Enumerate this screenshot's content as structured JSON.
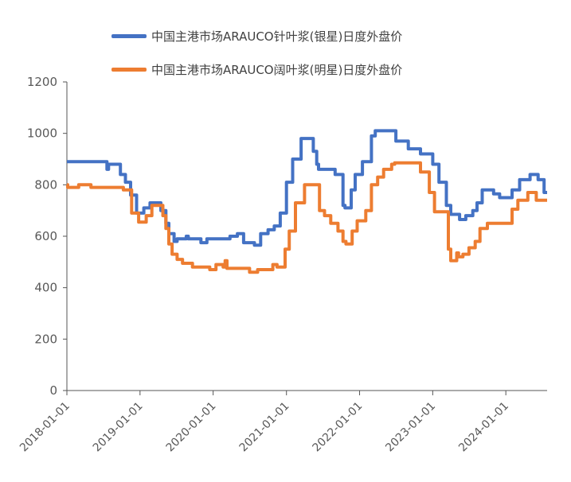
{
  "chart_data": {
    "type": "line",
    "title": "",
    "xlabel": "",
    "ylabel": "",
    "ylim": [
      0,
      1200
    ],
    "yticks": [
      "0",
      "200",
      "400",
      "600",
      "800",
      "1000",
      "1200"
    ],
    "xticks": [
      "2018-01-01",
      "2019-01-01",
      "2020-01-01",
      "2021-01-01",
      "2022-01-01",
      "2023-01-01",
      "2024-01-01"
    ],
    "grid": false,
    "legend_position": "top",
    "series": [
      {
        "name": "中国主港市场ARAUCO针叶浆(银星)日度外盘价",
        "color": "#4472C4",
        "points": [
          [
            "2018-01-01",
            890
          ],
          [
            "2018-07-20",
            890
          ],
          [
            "2018-07-20",
            860
          ],
          [
            "2018-07-28",
            860
          ],
          [
            "2018-07-28",
            880
          ],
          [
            "2018-09-25",
            880
          ],
          [
            "2018-09-25",
            840
          ],
          [
            "2018-10-20",
            840
          ],
          [
            "2018-10-20",
            810
          ],
          [
            "2018-11-15",
            810
          ],
          [
            "2018-11-15",
            760
          ],
          [
            "2018-12-15",
            760
          ],
          [
            "2018-12-15",
            690
          ],
          [
            "2019-01-20",
            690
          ],
          [
            "2019-01-20",
            710
          ],
          [
            "2019-02-20",
            710
          ],
          [
            "2019-02-20",
            730
          ],
          [
            "2019-04-15",
            730
          ],
          [
            "2019-04-15",
            700
          ],
          [
            "2019-05-10",
            700
          ],
          [
            "2019-05-10",
            650
          ],
          [
            "2019-05-25",
            650
          ],
          [
            "2019-05-25",
            610
          ],
          [
            "2019-06-20",
            610
          ],
          [
            "2019-06-20",
            580
          ],
          [
            "2019-07-05",
            580
          ],
          [
            "2019-07-05",
            590
          ],
          [
            "2019-08-20",
            590
          ],
          [
            "2019-08-20",
            600
          ],
          [
            "2019-08-30",
            600
          ],
          [
            "2019-08-30",
            590
          ],
          [
            "2019-11-01",
            590
          ],
          [
            "2019-11-01",
            575
          ],
          [
            "2019-12-01",
            575
          ],
          [
            "2019-12-01",
            590
          ],
          [
            "2020-03-25",
            590
          ],
          [
            "2020-03-25",
            600
          ],
          [
            "2020-05-01",
            600
          ],
          [
            "2020-05-01",
            610
          ],
          [
            "2020-06-01",
            610
          ],
          [
            "2020-06-01",
            575
          ],
          [
            "2020-07-25",
            575
          ],
          [
            "2020-07-25",
            565
          ],
          [
            "2020-08-25",
            565
          ],
          [
            "2020-08-25",
            610
          ],
          [
            "2020-10-01",
            610
          ],
          [
            "2020-10-01",
            625
          ],
          [
            "2020-11-01",
            625
          ],
          [
            "2020-11-01",
            640
          ],
          [
            "2020-12-01",
            640
          ],
          [
            "2020-12-01",
            690
          ],
          [
            "2021-01-01",
            690
          ],
          [
            "2021-01-01",
            810
          ],
          [
            "2021-02-01",
            810
          ],
          [
            "2021-02-01",
            900
          ],
          [
            "2021-03-15",
            900
          ],
          [
            "2021-03-15",
            980
          ],
          [
            "2021-05-15",
            980
          ],
          [
            "2021-05-15",
            930
          ],
          [
            "2021-06-01",
            930
          ],
          [
            "2021-06-01",
            880
          ],
          [
            "2021-06-10",
            880
          ],
          [
            "2021-06-10",
            860
          ],
          [
            "2021-09-01",
            860
          ],
          [
            "2021-09-01",
            840
          ],
          [
            "2021-10-10",
            840
          ],
          [
            "2021-10-10",
            720
          ],
          [
            "2021-10-20",
            720
          ],
          [
            "2021-10-20",
            710
          ],
          [
            "2021-11-20",
            710
          ],
          [
            "2021-11-20",
            780
          ],
          [
            "2021-12-10",
            780
          ],
          [
            "2021-12-10",
            840
          ],
          [
            "2022-01-15",
            840
          ],
          [
            "2022-01-15",
            890
          ],
          [
            "2022-03-01",
            890
          ],
          [
            "2022-03-01",
            990
          ],
          [
            "2022-03-20",
            990
          ],
          [
            "2022-03-20",
            1010
          ],
          [
            "2022-07-01",
            1010
          ],
          [
            "2022-07-01",
            970
          ],
          [
            "2022-09-01",
            970
          ],
          [
            "2022-09-01",
            940
          ],
          [
            "2022-11-01",
            940
          ],
          [
            "2022-11-01",
            920
          ],
          [
            "2023-01-01",
            920
          ],
          [
            "2023-01-01",
            880
          ],
          [
            "2023-02-01",
            880
          ],
          [
            "2023-02-01",
            810
          ],
          [
            "2023-03-10",
            810
          ],
          [
            "2023-03-10",
            720
          ],
          [
            "2023-04-01",
            720
          ],
          [
            "2023-04-01",
            685
          ],
          [
            "2023-05-15",
            685
          ],
          [
            "2023-05-15",
            665
          ],
          [
            "2023-06-15",
            665
          ],
          [
            "2023-06-15",
            680
          ],
          [
            "2023-07-20",
            680
          ],
          [
            "2023-07-20",
            700
          ],
          [
            "2023-08-10",
            700
          ],
          [
            "2023-08-10",
            730
          ],
          [
            "2023-09-05",
            730
          ],
          [
            "2023-09-05",
            780
          ],
          [
            "2023-11-01",
            780
          ],
          [
            "2023-11-01",
            765
          ],
          [
            "2023-12-01",
            765
          ],
          [
            "2023-12-01",
            750
          ],
          [
            "2024-02-01",
            750
          ],
          [
            "2024-02-01",
            780
          ],
          [
            "2024-03-10",
            780
          ],
          [
            "2024-03-10",
            820
          ],
          [
            "2024-05-01",
            820
          ],
          [
            "2024-05-01",
            840
          ],
          [
            "2024-06-10",
            840
          ],
          [
            "2024-06-10",
            820
          ],
          [
            "2024-07-10",
            820
          ],
          [
            "2024-07-10",
            770
          ],
          [
            "2024-07-25",
            770
          ]
        ]
      },
      {
        "name": "中国主港市场ARAUCO阔叶浆(明星)日度外盘价",
        "color": "#ED7D31",
        "points": [
          [
            "2018-01-01",
            800
          ],
          [
            "2018-01-05",
            800
          ],
          [
            "2018-01-05",
            790
          ],
          [
            "2018-03-01",
            790
          ],
          [
            "2018-03-01",
            800
          ],
          [
            "2018-05-01",
            800
          ],
          [
            "2018-05-01",
            790
          ],
          [
            "2018-10-10",
            790
          ],
          [
            "2018-10-10",
            780
          ],
          [
            "2018-11-20",
            780
          ],
          [
            "2018-11-20",
            690
          ],
          [
            "2018-12-25",
            690
          ],
          [
            "2018-12-25",
            655
          ],
          [
            "2019-02-01",
            655
          ],
          [
            "2019-02-01",
            680
          ],
          [
            "2019-03-01",
            680
          ],
          [
            "2019-03-01",
            720
          ],
          [
            "2019-04-25",
            720
          ],
          [
            "2019-04-25",
            680
          ],
          [
            "2019-05-10",
            680
          ],
          [
            "2019-05-10",
            630
          ],
          [
            "2019-05-25",
            630
          ],
          [
            "2019-05-25",
            570
          ],
          [
            "2019-06-10",
            570
          ],
          [
            "2019-06-10",
            530
          ],
          [
            "2019-07-05",
            530
          ],
          [
            "2019-07-05",
            510
          ],
          [
            "2019-08-01",
            510
          ],
          [
            "2019-08-01",
            495
          ],
          [
            "2019-09-20",
            495
          ],
          [
            "2019-09-20",
            480
          ],
          [
            "2019-12-15",
            480
          ],
          [
            "2019-12-15",
            470
          ],
          [
            "2020-01-15",
            470
          ],
          [
            "2020-01-15",
            490
          ],
          [
            "2020-02-20",
            490
          ],
          [
            "2020-02-20",
            480
          ],
          [
            "2020-03-01",
            480
          ],
          [
            "2020-03-01",
            505
          ],
          [
            "2020-03-10",
            505
          ],
          [
            "2020-03-10",
            475
          ],
          [
            "2020-07-01",
            475
          ],
          [
            "2020-07-01",
            460
          ],
          [
            "2020-08-10",
            460
          ],
          [
            "2020-08-10",
            470
          ],
          [
            "2020-10-25",
            470
          ],
          [
            "2020-10-25",
            490
          ],
          [
            "2020-11-15",
            490
          ],
          [
            "2020-11-15",
            480
          ],
          [
            "2020-12-25",
            480
          ],
          [
            "2020-12-25",
            550
          ],
          [
            "2021-01-15",
            550
          ],
          [
            "2021-01-15",
            620
          ],
          [
            "2021-02-15",
            620
          ],
          [
            "2021-02-15",
            730
          ],
          [
            "2021-04-01",
            730
          ],
          [
            "2021-04-01",
            800
          ],
          [
            "2021-06-15",
            800
          ],
          [
            "2021-06-15",
            700
          ],
          [
            "2021-07-10",
            700
          ],
          [
            "2021-07-10",
            680
          ],
          [
            "2021-08-10",
            680
          ],
          [
            "2021-08-10",
            650
          ],
          [
            "2021-09-15",
            650
          ],
          [
            "2021-09-15",
            620
          ],
          [
            "2021-10-10",
            620
          ],
          [
            "2021-10-10",
            580
          ],
          [
            "2021-10-25",
            580
          ],
          [
            "2021-10-25",
            570
          ],
          [
            "2021-11-25",
            570
          ],
          [
            "2021-11-25",
            620
          ],
          [
            "2021-12-20",
            620
          ],
          [
            "2021-12-20",
            660
          ],
          [
            "2022-02-01",
            660
          ],
          [
            "2022-02-01",
            700
          ],
          [
            "2022-03-01",
            700
          ],
          [
            "2022-03-01",
            800
          ],
          [
            "2022-04-01",
            800
          ],
          [
            "2022-04-01",
            830
          ],
          [
            "2022-05-01",
            830
          ],
          [
            "2022-05-01",
            860
          ],
          [
            "2022-06-10",
            860
          ],
          [
            "2022-06-10",
            880
          ],
          [
            "2022-06-25",
            880
          ],
          [
            "2022-06-25",
            885
          ],
          [
            "2022-11-01",
            885
          ],
          [
            "2022-11-01",
            850
          ],
          [
            "2022-12-15",
            850
          ],
          [
            "2022-12-15",
            770
          ],
          [
            "2023-01-10",
            770
          ],
          [
            "2023-01-10",
            695
          ],
          [
            "2023-03-20",
            695
          ],
          [
            "2023-03-20",
            550
          ],
          [
            "2023-04-01",
            550
          ],
          [
            "2023-04-01",
            505
          ],
          [
            "2023-05-01",
            505
          ],
          [
            "2023-05-01",
            535
          ],
          [
            "2023-05-10",
            535
          ],
          [
            "2023-05-10",
            520
          ],
          [
            "2023-06-01",
            520
          ],
          [
            "2023-06-01",
            530
          ],
          [
            "2023-07-01",
            530
          ],
          [
            "2023-07-01",
            555
          ],
          [
            "2023-08-01",
            555
          ],
          [
            "2023-08-01",
            580
          ],
          [
            "2023-08-25",
            580
          ],
          [
            "2023-08-25",
            630
          ],
          [
            "2023-10-01",
            630
          ],
          [
            "2023-10-01",
            650
          ],
          [
            "2024-02-01",
            650
          ],
          [
            "2024-02-01",
            705
          ],
          [
            "2024-03-01",
            705
          ],
          [
            "2024-03-01",
            740
          ],
          [
            "2024-04-20",
            740
          ],
          [
            "2024-04-20",
            770
          ],
          [
            "2024-06-01",
            770
          ],
          [
            "2024-06-01",
            740
          ],
          [
            "2024-07-25",
            740
          ]
        ]
      }
    ]
  }
}
